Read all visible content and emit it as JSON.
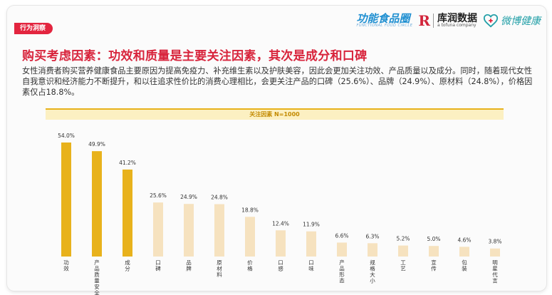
{
  "header": {
    "section_tag": "行为洞察",
    "logos": {
      "functional_food": "功能食品圈",
      "functional_food_sub": "FUNCTIONAL FOOD CIRCLE",
      "kuchuan": "库润数据",
      "kuchuan_sub": "a tofuna company",
      "weibo_health": "微博健康"
    }
  },
  "title": "购买考虑因素：功效和质量是主要关注因素，其次是成分和口碑",
  "description": "女性消费者购买营养健康食品主要原因为提高免疫力、补充维生素以及护肤美容，因此会更加关注功效、产品质量以及成分。同时，随着现代女性自我意识和经济能力不断提升，和以往追求性价比的消费心理相比，会更关注产品的口碑（25.6%）、品牌（24.9%）、原材料（24.8%），价格因素仅占18.8%。",
  "colors": {
    "accent": "#d8243c",
    "highlight_bar": "#e8b21c",
    "normal_bar": "#f6e2bf"
  },
  "chart_data": {
    "type": "bar",
    "title": "关注因素 N=1000",
    "categories": [
      "功效",
      "产品质量安全",
      "成分",
      "口碑",
      "品牌",
      "原材料",
      "价格",
      "口感",
      "口味",
      "产品形态",
      "规格大小",
      "工艺",
      "宣传",
      "包装",
      "明星代言"
    ],
    "values": [
      54.0,
      49.9,
      41.2,
      25.6,
      24.9,
      24.8,
      18.8,
      12.4,
      11.9,
      6.6,
      6.3,
      5.2,
      5.0,
      4.6,
      3.8
    ],
    "value_labels": [
      "54.0%",
      "49.9%",
      "41.2%",
      "25.6%",
      "24.9%",
      "24.8%",
      "18.8%",
      "12.4%",
      "11.9%",
      "6.6%",
      "6.3%",
      "5.2%",
      "5.0%",
      "4.6%",
      "3.8%"
    ],
    "highlighted_count": 3,
    "unit": "%"
  }
}
